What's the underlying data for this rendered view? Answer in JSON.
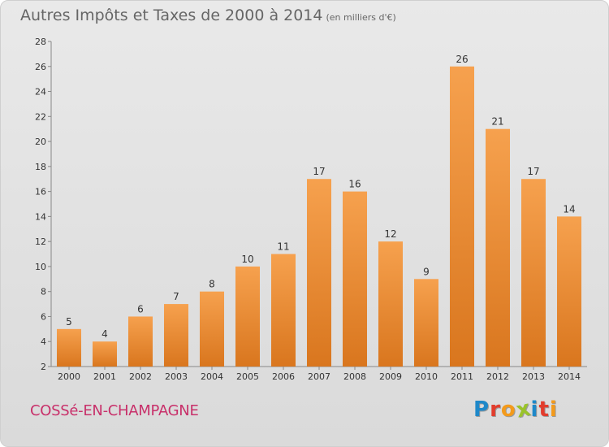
{
  "header": {
    "title": "Autres Impôts et Taxes de 2000 à 2014",
    "unit": "(en milliers d'€)"
  },
  "footer": {
    "commune": "COSSé-EN-CHAMPAGNE",
    "logo_letters": [
      "P",
      "r",
      "o",
      "x",
      "i",
      "t",
      "i"
    ],
    "logo_colors": [
      "#1e88c9",
      "#e23c2c",
      "#f39a1b",
      "#9ac32a",
      "#1e88c9",
      "#e23c2c",
      "#f39a1b"
    ]
  },
  "chart_data": {
    "type": "bar",
    "categories": [
      "2000",
      "2001",
      "2002",
      "2003",
      "2004",
      "2005",
      "2006",
      "2007",
      "2008",
      "2009",
      "2010",
      "2011",
      "2012",
      "2013",
      "2014"
    ],
    "values": [
      5,
      4,
      6,
      7,
      8,
      10,
      11,
      17,
      16,
      12,
      9,
      26,
      21,
      17,
      14
    ],
    "data_labels": [
      "5",
      "4",
      "6",
      "7",
      "8",
      "10",
      "11",
      "17",
      "16",
      "12",
      "9",
      "26",
      "21",
      "17",
      "14"
    ],
    "yticks": [
      "2",
      "4",
      "6",
      "8",
      "10",
      "12",
      "14",
      "16",
      "18",
      "20",
      "22",
      "24",
      "26",
      "28"
    ],
    "ylim": [
      2,
      28
    ],
    "grid": false,
    "bar_color_top": "#f6a14e",
    "bar_color_bottom": "#d9761e"
  }
}
